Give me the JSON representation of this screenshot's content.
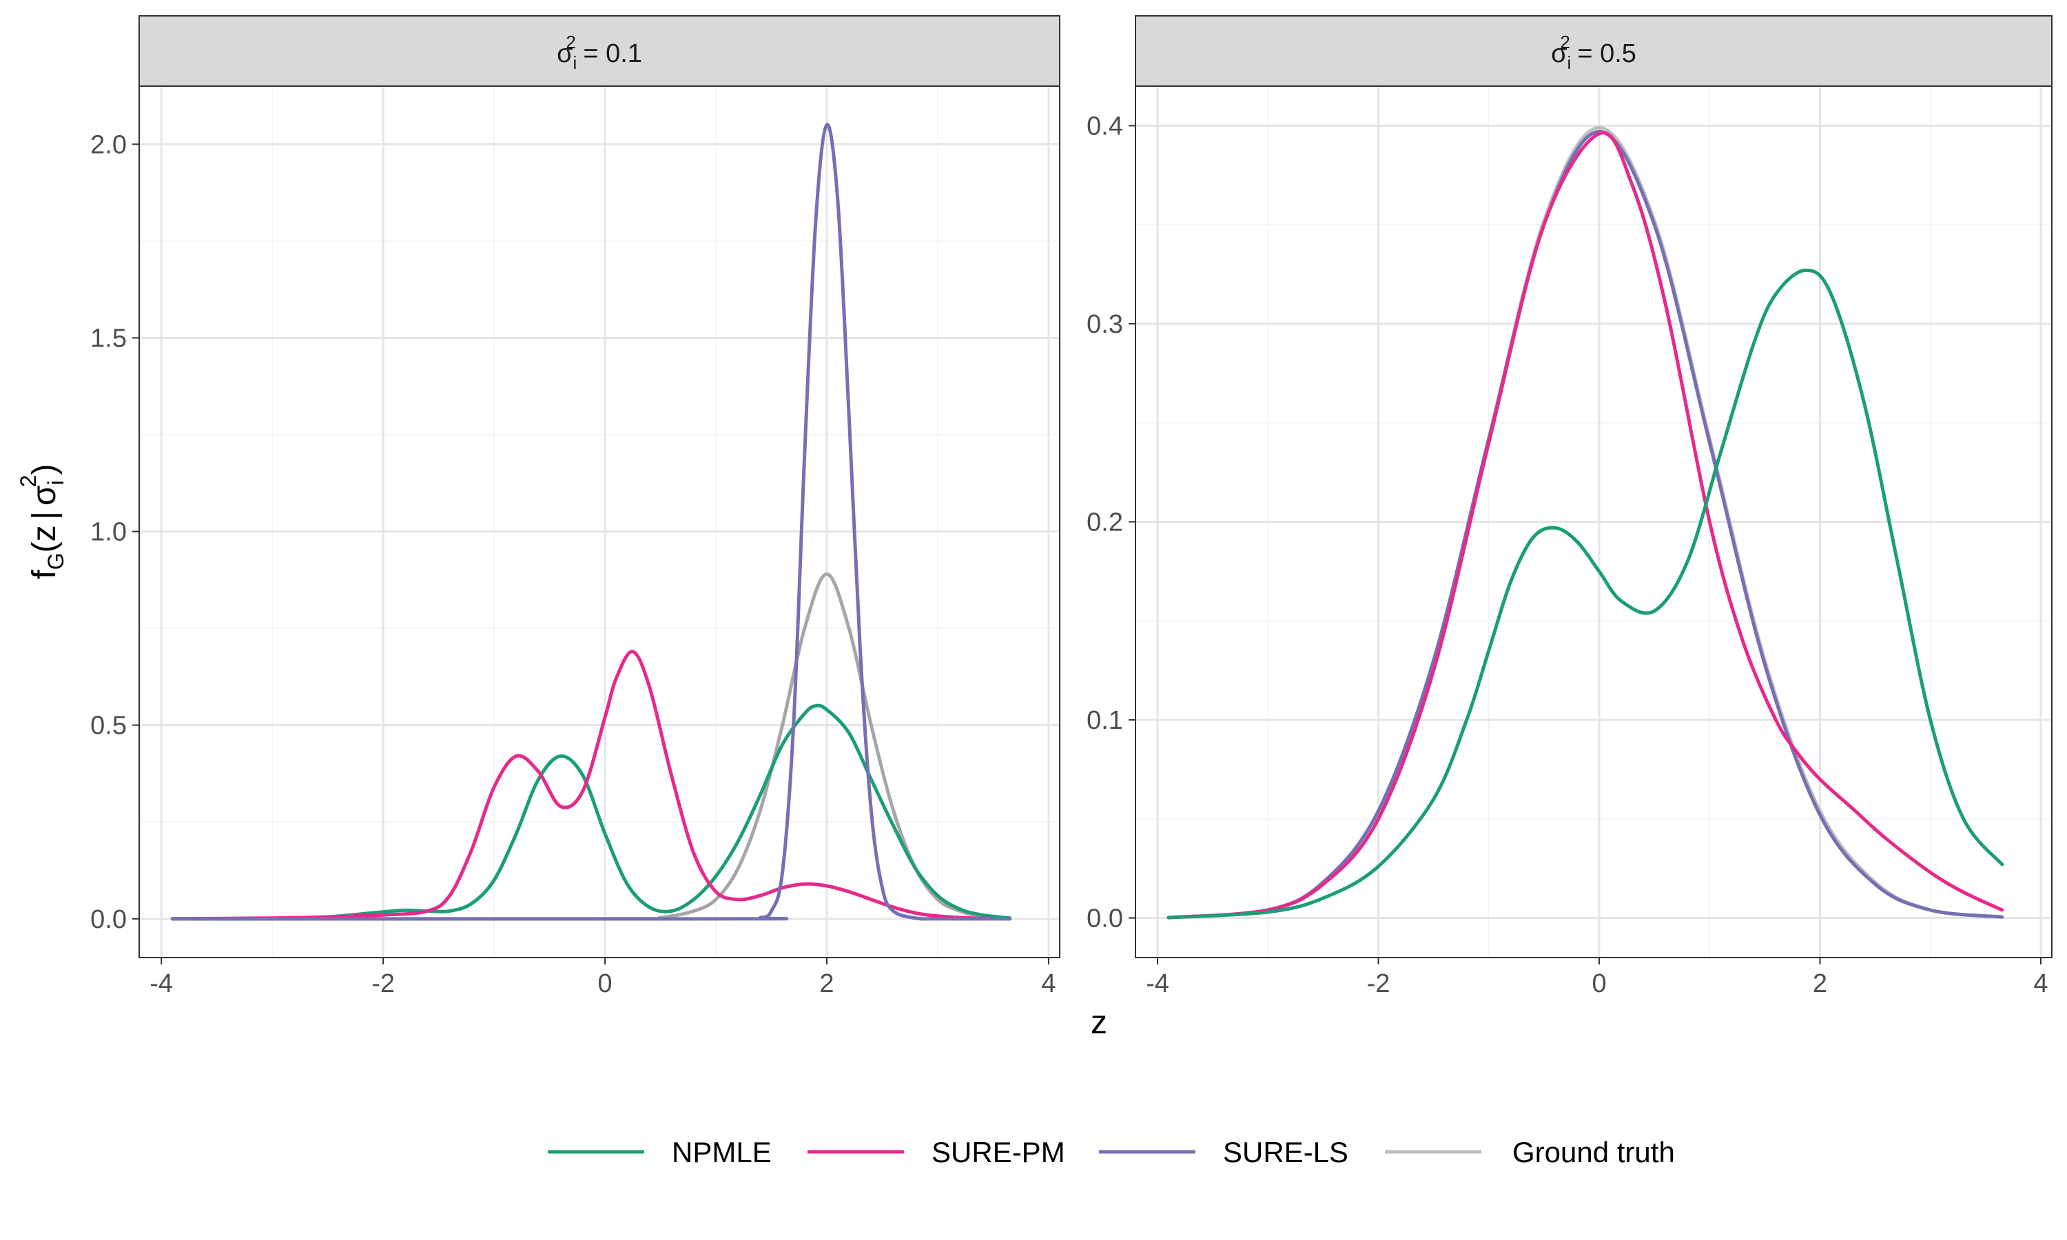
{
  "chart_data": {
    "type": "line",
    "xlabel": "z",
    "ylabel": "f_G(z | σ_i²)",
    "ylabel_parts": {
      "f": "f",
      "G": "G",
      "open": "(z",
      "bar": "|",
      "sigma": "σ",
      "i": "i",
      "two": "2",
      "close": ")"
    },
    "legend": {
      "position": "bottom",
      "entries": [
        {
          "label": "NPMLE",
          "color": "#1b9e77"
        },
        {
          "label": "SURE-PM",
          "color": "#e7298a"
        },
        {
          "label": "SURE-LS",
          "color": "#7570b3"
        },
        {
          "label": "Ground truth",
          "color": "#bdbdbd"
        }
      ]
    },
    "panels": [
      {
        "strip_label": {
          "sigma": "σ",
          "sub": "i",
          "sup": "2",
          "rest": " = 0.1"
        },
        "xlim": [
          -4.2,
          4.1
        ],
        "ylim": [
          -0.1,
          2.15
        ],
        "x_ticks": [
          -4,
          -2,
          0,
          2,
          4
        ],
        "x_tick_labels": [
          "-4",
          "-2",
          "0",
          "2",
          "4"
        ],
        "y_ticks": [
          0,
          0.5,
          1,
          1.5,
          2
        ],
        "y_tick_labels": [
          "0.0",
          "0.5",
          "1.0",
          "1.5",
          "2.0"
        ],
        "grid": true,
        "series": [
          {
            "name": "Ground truth",
            "color": "#a6a6a6",
            "x": [
              -3.9,
              0.2,
              0.5,
              0.8,
              1.0,
              1.2,
              1.4,
              1.6,
              1.8,
              2.0,
              2.2,
              2.4,
              2.6,
              2.8,
              3.0,
              3.2,
              3.4,
              3.65
            ],
            "y": [
              0.0,
              0.0,
              0.003,
              0.02,
              0.05,
              0.13,
              0.28,
              0.5,
              0.75,
              0.89,
              0.75,
              0.5,
              0.28,
              0.13,
              0.05,
              0.02,
              0.006,
              0.001
            ]
          },
          {
            "name": "NPMLE",
            "color": "#1b9e77",
            "x": [
              -3.9,
              -3.0,
              -2.5,
              -2.0,
              -1.8,
              -1.6,
              -1.4,
              -1.2,
              -1.0,
              -0.8,
              -0.6,
              -0.4,
              -0.2,
              0.0,
              0.2,
              0.4,
              0.6,
              0.8,
              1.0,
              1.2,
              1.4,
              1.6,
              1.8,
              1.9,
              2.0,
              2.2,
              2.4,
              2.6,
              2.8,
              3.0,
              3.2,
              3.4,
              3.65
            ],
            "y": [
              0.0,
              0.0,
              0.005,
              0.018,
              0.022,
              0.02,
              0.02,
              0.04,
              0.1,
              0.22,
              0.36,
              0.42,
              0.37,
              0.22,
              0.09,
              0.03,
              0.02,
              0.05,
              0.11,
              0.2,
              0.32,
              0.45,
              0.53,
              0.55,
              0.54,
              0.48,
              0.36,
              0.24,
              0.13,
              0.06,
              0.025,
              0.01,
              0.002
            ]
          },
          {
            "name": "SURE-PM",
            "color": "#e7298a",
            "x": [
              -3.9,
              -3.0,
              -2.5,
              -2.0,
              -1.6,
              -1.4,
              -1.2,
              -1.0,
              -0.8,
              -0.6,
              -0.4,
              -0.2,
              0.0,
              0.1,
              0.25,
              0.4,
              0.6,
              0.8,
              1.0,
              1.2,
              1.4,
              1.6,
              1.8,
              2.0,
              2.2,
              2.4,
              2.6,
              2.8,
              3.0,
              3.3,
              3.65
            ],
            "y": [
              0.0,
              0.002,
              0.005,
              0.01,
              0.02,
              0.06,
              0.18,
              0.34,
              0.42,
              0.38,
              0.29,
              0.33,
              0.52,
              0.62,
              0.69,
              0.6,
              0.37,
              0.17,
              0.07,
              0.05,
              0.06,
              0.08,
              0.09,
              0.085,
              0.07,
              0.05,
              0.03,
              0.015,
              0.007,
              0.002,
              0.0
            ]
          },
          {
            "name": "SURE-LS",
            "color": "#7570b3",
            "x": [
              -3.9,
              1.2,
              1.4,
              1.5,
              1.6,
              1.7,
              1.8,
              1.9,
              2.0,
              2.1,
              2.2,
              2.3,
              2.4,
              2.5,
              2.6,
              2.8,
              3.0,
              3.65
            ],
            "y": [
              0.0,
              0.0,
              0.003,
              0.02,
              0.12,
              0.5,
              1.2,
              1.8,
              2.05,
              1.85,
              1.3,
              0.7,
              0.28,
              0.08,
              0.02,
              0.002,
              0.0,
              0.0
            ]
          }
        ]
      },
      {
        "strip_label": {
          "sigma": "σ",
          "sub": "i",
          "sup": "2",
          "rest": " = 0.5"
        },
        "xlim": [
          -4.2,
          4.1
        ],
        "ylim": [
          -0.02,
          0.42
        ],
        "x_ticks": [
          -4,
          -2,
          0,
          2,
          4
        ],
        "x_tick_labels": [
          "-4",
          "-2",
          "0",
          "2",
          "4"
        ],
        "y_ticks": [
          0,
          0.1,
          0.2,
          0.3,
          0.4
        ],
        "y_tick_labels": [
          "0.0",
          "0.1",
          "0.2",
          "0.3",
          "0.4"
        ],
        "grid": true,
        "series": [
          {
            "name": "Ground truth",
            "color": "#bdbdbd",
            "x": [
              -3.9,
              -3.0,
              -2.5,
              -2.0,
              -1.5,
              -1.0,
              -0.5,
              0.0,
              0.5,
              1.0,
              1.5,
              2.0,
              2.5,
              3.0,
              3.65
            ],
            "y": [
              0.0002,
              0.004,
              0.018,
              0.054,
              0.13,
              0.242,
              0.352,
              0.399,
              0.352,
              0.242,
              0.13,
              0.054,
              0.018,
              0.004,
              0.0005
            ]
          },
          {
            "name": "SURE-LS",
            "color": "#7570b3",
            "x": [
              -3.9,
              -3.0,
              -2.5,
              -2.0,
              -1.5,
              -1.0,
              -0.5,
              0.0,
              0.5,
              1.0,
              1.5,
              2.0,
              2.5,
              3.0,
              3.65
            ],
            "y": [
              0.0002,
              0.004,
              0.018,
              0.054,
              0.13,
              0.242,
              0.35,
              0.397,
              0.35,
              0.24,
              0.128,
              0.052,
              0.017,
              0.004,
              0.0005
            ]
          },
          {
            "name": "SURE-PM",
            "color": "#e7298a",
            "x": [
              -3.9,
              -3.0,
              -2.5,
              -2.0,
              -1.5,
              -1.0,
              -0.5,
              0.0,
              0.3,
              0.6,
              1.0,
              1.3,
              1.6,
              1.8,
              2.0,
              2.3,
              2.6,
              3.0,
              3.3,
              3.65
            ],
            "y": [
              0.0002,
              0.004,
              0.017,
              0.05,
              0.125,
              0.24,
              0.35,
              0.396,
              0.37,
              0.31,
              0.2,
              0.14,
              0.1,
              0.083,
              0.07,
              0.055,
              0.04,
              0.023,
              0.013,
              0.004
            ]
          },
          {
            "name": "NPMLE",
            "color": "#1b9e77",
            "x": [
              -3.9,
              -3.0,
              -2.5,
              -2.0,
              -1.5,
              -1.2,
              -1.0,
              -0.8,
              -0.6,
              -0.4,
              -0.2,
              0.0,
              0.2,
              0.5,
              0.8,
              1.1,
              1.4,
              1.6,
              1.87,
              2.1,
              2.4,
              2.7,
              3.0,
              3.3,
              3.65
            ],
            "y": [
              0.0002,
              0.003,
              0.01,
              0.026,
              0.06,
              0.1,
              0.135,
              0.17,
              0.192,
              0.197,
              0.19,
              0.175,
              0.16,
              0.155,
              0.18,
              0.235,
              0.29,
              0.315,
              0.327,
              0.315,
              0.26,
              0.18,
              0.1,
              0.05,
              0.027
            ]
          }
        ]
      }
    ]
  }
}
